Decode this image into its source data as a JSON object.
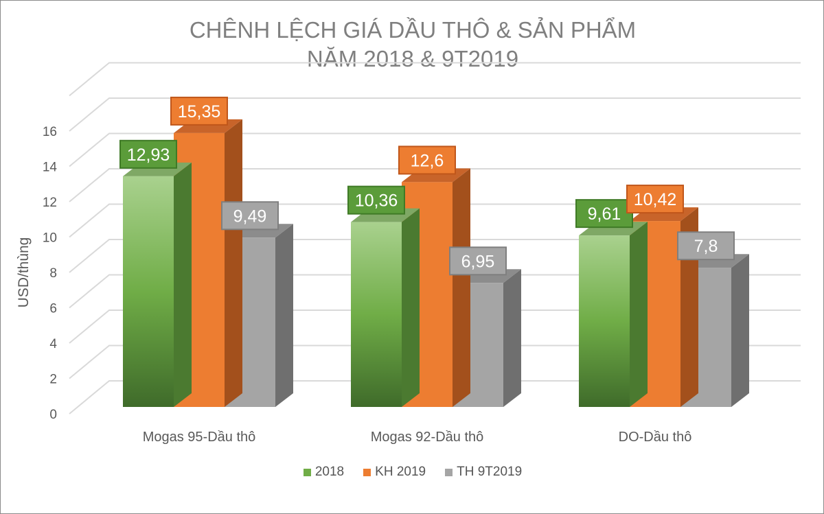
{
  "chart_data": {
    "type": "bar",
    "title_line1": "CHÊNH LỆCH GIÁ DẦU THÔ & SẢN PHẨM",
    "title_line2": "NĂM 2018 & 9T2019",
    "ylabel": "USD/thùng",
    "xlabel": "",
    "ylim": [
      0,
      16
    ],
    "yticks": [
      "0",
      "2",
      "4",
      "6",
      "8",
      "10",
      "12",
      "14",
      "16"
    ],
    "categories": [
      "Mogas 95-Dầu thô",
      "Mogas 92-Dầu thô",
      "DO-Dầu thô"
    ],
    "series": [
      {
        "name": "2018",
        "values": [
          12.93,
          10.36,
          9.61
        ],
        "labels": [
          "12,93",
          "10,36",
          "9,61"
        ],
        "color": "#70ad47"
      },
      {
        "name": "KH 2019",
        "values": [
          15.35,
          12.6,
          10.42
        ],
        "labels": [
          "15,35",
          "12,6",
          "10,42"
        ],
        "color": "#ed7d31"
      },
      {
        "name": "TH 9T2019",
        "values": [
          9.49,
          6.95,
          7.8
        ],
        "labels": [
          "9,49",
          "6,95",
          "7,8"
        ],
        "color": "#a5a5a5"
      }
    ],
    "grid": true,
    "legend": "bottom",
    "style": "3d-clustered-column"
  }
}
